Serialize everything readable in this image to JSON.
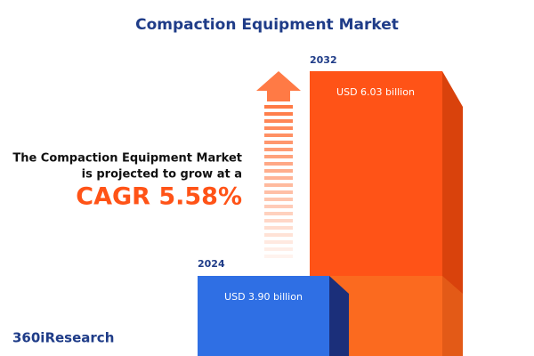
{
  "title": "Compaction Equipment Market",
  "description": [
    "The Compaction Equipment Market",
    "is projected to grow at a"
  ],
  "cagr": "CAGR 5.58%",
  "bars": [
    {
      "year": "2024",
      "label": "USD 3.90 billion"
    },
    {
      "year": "2032",
      "label": "USD 6.03 billion"
    }
  ],
  "brand": "360iResearch"
}
